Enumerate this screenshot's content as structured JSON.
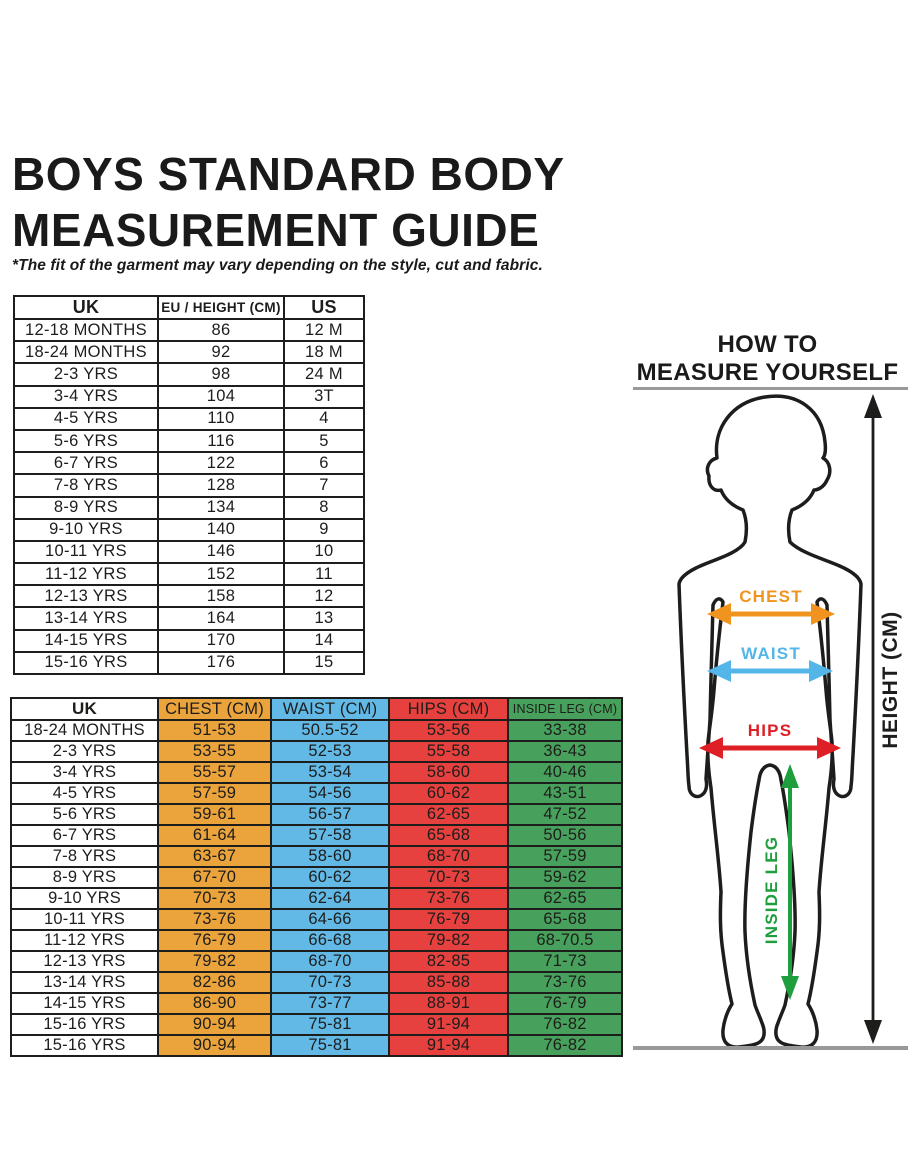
{
  "page": {
    "title_line1": "BOYS STANDARD BODY",
    "title_line2": "MEASUREMENT GUIDE",
    "disclaimer": "*The fit of the garment may vary depending on the style, cut and fabric."
  },
  "size_table": {
    "columns": [
      {
        "label": "UK",
        "color": "#ffffff"
      },
      {
        "label": "EU / HEIGHT (CM)",
        "color": "#ffffff"
      },
      {
        "label": "US",
        "color": "#ffffff"
      }
    ],
    "rows": [
      [
        "12-18 MONTHS",
        "86",
        "12 M"
      ],
      [
        "18-24 MONTHS",
        "92",
        "18 M"
      ],
      [
        "2-3 YRS",
        "98",
        "24 M"
      ],
      [
        "3-4 YRS",
        "104",
        "3T"
      ],
      [
        "4-5 YRS",
        "110",
        "4"
      ],
      [
        "5-6 YRS",
        "116",
        "5"
      ],
      [
        "6-7 YRS",
        "122",
        "6"
      ],
      [
        "7-8 YRS",
        "128",
        "7"
      ],
      [
        "8-9 YRS",
        "134",
        "8"
      ],
      [
        "9-10 YRS",
        "140",
        "9"
      ],
      [
        "10-11 YRS",
        "146",
        "10"
      ],
      [
        "11-12 YRS",
        "152",
        "11"
      ],
      [
        "12-13 YRS",
        "158",
        "12"
      ],
      [
        "13-14 YRS",
        "164",
        "13"
      ],
      [
        "14-15 YRS",
        "170",
        "14"
      ],
      [
        "15-16 YRS",
        "176",
        "15"
      ]
    ]
  },
  "body_table": {
    "columns": [
      {
        "label": "UK",
        "color": "#ffffff"
      },
      {
        "label": "CHEST (CM)",
        "color": "#EBA33C"
      },
      {
        "label": "WAIST (CM)",
        "color": "#62B9E6"
      },
      {
        "label": "HIPS (CM)",
        "color": "#E6413E"
      },
      {
        "label": "INSIDE LEG (CM)",
        "color": "#47A05B"
      }
    ],
    "rows": [
      [
        "18-24 MONTHS",
        "51-53",
        "50.5-52",
        "53-56",
        "33-38"
      ],
      [
        "2-3 YRS",
        "53-55",
        "52-53",
        "55-58",
        "36-43"
      ],
      [
        "3-4 YRS",
        "55-57",
        "53-54",
        "58-60",
        "40-46"
      ],
      [
        "4-5 YRS",
        "57-59",
        "54-56",
        "60-62",
        "43-51"
      ],
      [
        "5-6 YRS",
        "59-61",
        "56-57",
        "62-65",
        "47-52"
      ],
      [
        "6-7 YRS",
        "61-64",
        "57-58",
        "65-68",
        "50-56"
      ],
      [
        "7-8 YRS",
        "63-67",
        "58-60",
        "68-70",
        "57-59"
      ],
      [
        "8-9 YRS",
        "67-70",
        "60-62",
        "70-73",
        "59-62"
      ],
      [
        "9-10 YRS",
        "70-73",
        "62-64",
        "73-76",
        "62-65"
      ],
      [
        "10-11 YRS",
        "73-76",
        "64-66",
        "76-79",
        "65-68"
      ],
      [
        "11-12 YRS",
        "76-79",
        "66-68",
        "79-82",
        "68-70.5"
      ],
      [
        "12-13 YRS",
        "79-82",
        "68-70",
        "82-85",
        "71-73"
      ],
      [
        "13-14 YRS",
        "82-86",
        "70-73",
        "85-88",
        "73-76"
      ],
      [
        "14-15 YRS",
        "86-90",
        "73-77",
        "88-91",
        "76-79"
      ],
      [
        "15-16 YRS",
        "90-94",
        "75-81",
        "91-94",
        "76-82"
      ],
      [
        "15-16 YRS",
        "90-94",
        "75-81",
        "91-94",
        "76-82"
      ]
    ]
  },
  "measure_guide": {
    "heading_line1": "HOW TO",
    "heading_line2": "MEASURE YOURSELF",
    "labels": {
      "chest": "CHEST",
      "waist": "WAIST",
      "hips": "HIPS",
      "inside_leg": "INSIDE LEG",
      "height": "HEIGHT (CM)"
    },
    "colors": {
      "chest": "#F0941F",
      "waist": "#54B6E8",
      "hips": "#DE1F26",
      "inside_leg": "#1E9E3C",
      "height_arrow": "#1d1d1b",
      "outline": "#1d1d1b",
      "baseline": "#999999"
    }
  }
}
